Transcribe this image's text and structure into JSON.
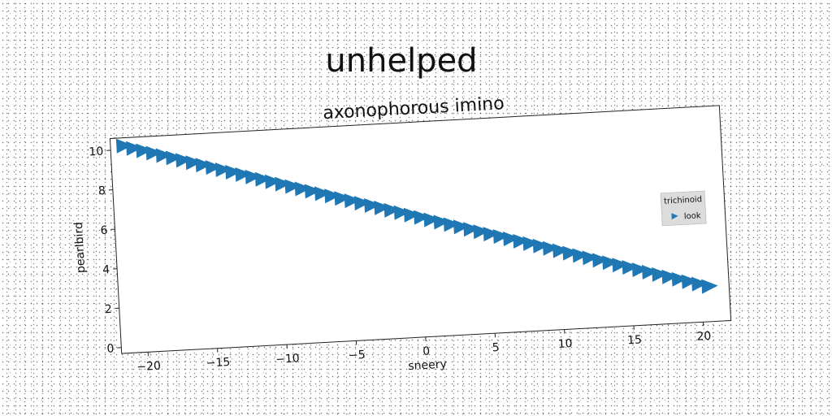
{
  "chart_data": {
    "type": "scatter",
    "suptitle": "unhelped",
    "title": "axonophorous imino",
    "xlabel": "sneery",
    "ylabel": "pearlbird",
    "xlim": [
      -21.9,
      22.0
    ],
    "ylim": [
      -0.3,
      10.6
    ],
    "xticks": [
      -20,
      -15,
      -10,
      -5,
      0,
      5,
      10,
      15,
      20
    ],
    "yticks": [
      0,
      2,
      4,
      6,
      8,
      10
    ],
    "xtick_labels": [
      "−20",
      "−15",
      "−10",
      "−5",
      "0",
      "5",
      "10",
      "15",
      "20"
    ],
    "ytick_labels": [
      "0",
      "2",
      "4",
      "6",
      "8",
      "10"
    ],
    "grid": false,
    "legend": {
      "title": "trichinoid",
      "placement": "center-right"
    },
    "series": [
      {
        "name": "look",
        "marker": "triangle-right",
        "color": "#1f77b4",
        "x_start": -21,
        "x_end": 20.5,
        "n_points": 60,
        "y_start": 10.2,
        "y_end": 1.5
      }
    ]
  }
}
